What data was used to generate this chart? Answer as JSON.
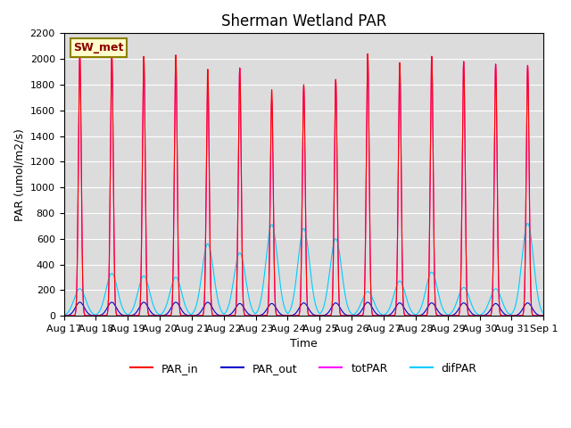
{
  "title": "Sherman Wetland PAR",
  "ylabel": "PAR (umol/m2/s)",
  "xlabel": "Time",
  "station_label": "SW_met",
  "ylim": [
    0,
    2200
  ],
  "n_days": 15,
  "xtick_labels": [
    "Aug 17",
    "Aug 18",
    "Aug 19",
    "Aug 20",
    "Aug 21",
    "Aug 22",
    "Aug 23",
    "Aug 24",
    "Aug 25",
    "Aug 26",
    "Aug 27",
    "Aug 28",
    "Aug 29",
    "Aug 30",
    "Aug 31",
    "Sep 1"
  ],
  "line_colors": {
    "PAR_in": "#ff0000",
    "PAR_out": "#0000cc",
    "totPAR": "#ff00ff",
    "difPAR": "#00ccff"
  },
  "background_color": "#dcdcdc",
  "grid_color": "#ffffff",
  "peaks_PAR_in": [
    2040,
    2040,
    2020,
    2030,
    1920,
    1930,
    1760,
    1800,
    1840,
    2040,
    1970,
    2020,
    1980,
    1960,
    1950
  ],
  "peaks_totPAR": [
    2040,
    2040,
    2020,
    2030,
    1830,
    1930,
    1680,
    1790,
    1840,
    2040,
    1970,
    2020,
    1980,
    1960,
    1950
  ],
  "peaks_PAR_out": [
    105,
    105,
    105,
    105,
    105,
    95,
    95,
    100,
    100,
    105,
    100,
    100,
    100,
    95,
    100
  ],
  "peaks_difPAR": [
    210,
    330,
    310,
    300,
    560,
    490,
    710,
    680,
    600,
    190,
    270,
    340,
    220,
    210,
    720
  ],
  "title_fontsize": 12,
  "label_fontsize": 9,
  "tick_fontsize": 8
}
